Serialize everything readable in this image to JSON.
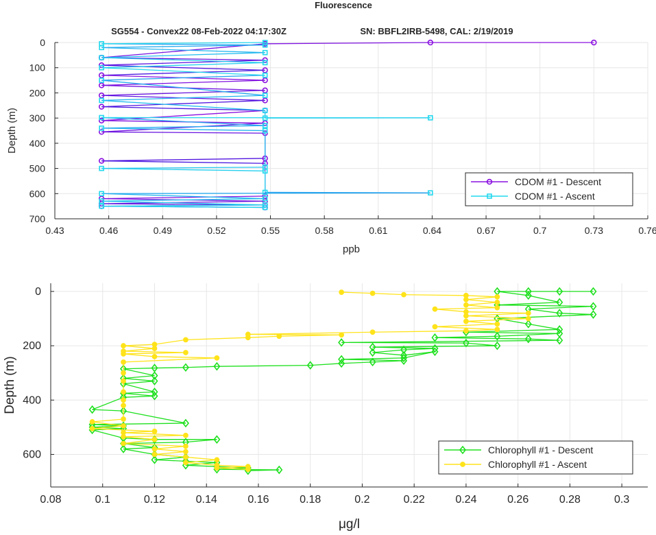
{
  "figure": {
    "title": "Fluorescence",
    "subtitle_left": "SG554 - Convex22 08-Feb-2022 04:17:30Z",
    "subtitle_right": "SN: BBFL2IRB-5498, CAL: 2/19/2019"
  },
  "colors": {
    "cdom_descent": "#8a10e0",
    "cdom_descent_dark": "#1a1ae0",
    "cdom_ascent": "#22d8ee",
    "cdom_ascent_dark": "#2a7ef0",
    "chl_descent": "#1ee01e",
    "chl_ascent": "#ffe31a",
    "grid": "#e6e6e6",
    "axis": "#262626"
  },
  "chart_data": [
    {
      "type": "line",
      "xlabel": "ppb",
      "ylabel": "Depth (m)",
      "xlim": [
        0.43,
        0.76
      ],
      "ylim": [
        0,
        700
      ],
      "y_reversed": true,
      "grid": true,
      "legend_location": "bottom-right",
      "xticks": [
        "0.43",
        "0.46",
        "0.49",
        "0.52",
        "0.55",
        "0.58",
        "0.61",
        "0.64",
        "0.67",
        "0.7",
        "0.73",
        "0.76"
      ],
      "yticks": [
        "0",
        "100",
        "200",
        "300",
        "400",
        "500",
        "600",
        "700"
      ],
      "series": [
        {
          "name": "CDOM #1 - Descent",
          "marker": "circle",
          "points": [
            [
              0.73,
              0
            ],
            [
              0.639,
              0
            ],
            [
              0.547,
              5
            ],
            [
              0.456,
              60
            ],
            [
              0.547,
              70
            ],
            [
              0.456,
              90
            ],
            [
              0.547,
              110
            ],
            [
              0.456,
              130
            ],
            [
              0.547,
              150
            ],
            [
              0.456,
              170
            ],
            [
              0.547,
              190
            ],
            [
              0.456,
              210
            ],
            [
              0.547,
              230
            ],
            [
              0.456,
              255
            ],
            [
              0.547,
              270
            ],
            [
              0.456,
              310
            ],
            [
              0.547,
              320
            ],
            [
              0.456,
              355
            ],
            [
              0.547,
              360
            ],
            [
              0.547,
              460
            ],
            [
              0.456,
              470
            ],
            [
              0.547,
              480
            ],
            [
              0.547,
              610
            ],
            [
              0.456,
              620
            ],
            [
              0.547,
              630
            ],
            [
              0.456,
              640
            ],
            [
              0.547,
              645
            ],
            [
              0.456,
              650
            ],
            [
              0.547,
              655
            ]
          ]
        },
        {
          "name": "CDOM #1 - Ascent",
          "marker": "square",
          "points": [
            [
              0.547,
              655
            ],
            [
              0.456,
              650
            ],
            [
              0.547,
              645
            ],
            [
              0.456,
              630
            ],
            [
              0.547,
              620
            ],
            [
              0.456,
              600
            ],
            [
              0.639,
              597
            ],
            [
              0.547,
              595
            ],
            [
              0.547,
              510
            ],
            [
              0.456,
              500
            ],
            [
              0.547,
              495
            ],
            [
              0.547,
              350
            ],
            [
              0.456,
              340
            ],
            [
              0.547,
              330
            ],
            [
              0.456,
              298
            ],
            [
              0.639,
              299
            ],
            [
              0.547,
              300
            ],
            [
              0.547,
              270
            ],
            [
              0.456,
              230
            ],
            [
              0.547,
              210
            ],
            [
              0.456,
              150
            ],
            [
              0.547,
              130
            ],
            [
              0.456,
              100
            ],
            [
              0.547,
              80
            ],
            [
              0.456,
              60
            ],
            [
              0.547,
              40
            ],
            [
              0.456,
              20
            ],
            [
              0.547,
              10
            ],
            [
              0.456,
              5
            ],
            [
              0.547,
              0
            ]
          ]
        }
      ]
    },
    {
      "type": "line",
      "xlabel": "μg/l",
      "ylabel": "Depth (m)",
      "xlim": [
        0.08,
        0.31
      ],
      "ylim": [
        -30,
        720
      ],
      "y_reversed": true,
      "grid": true,
      "legend_location": "bottom-right",
      "xticks": [
        "0.08",
        "0.1",
        "0.12",
        "0.14",
        "0.16",
        "0.18",
        "0.2",
        "0.22",
        "0.24",
        "0.26",
        "0.28",
        "0.3"
      ],
      "yticks": [
        "0",
        "200",
        "400",
        "600"
      ],
      "series": [
        {
          "name": "Chlorophyll #1 - Descent",
          "marker": "diamond",
          "points": [
            [
              0.289,
              0
            ],
            [
              0.276,
              0
            ],
            [
              0.264,
              0
            ],
            [
              0.252,
              0
            ],
            [
              0.264,
              15
            ],
            [
              0.276,
              40
            ],
            [
              0.252,
              50
            ],
            [
              0.289,
              55
            ],
            [
              0.264,
              65
            ],
            [
              0.276,
              80
            ],
            [
              0.289,
              85
            ],
            [
              0.252,
              100
            ],
            [
              0.264,
              120
            ],
            [
              0.276,
              140
            ],
            [
              0.24,
              150
            ],
            [
              0.276,
              155
            ],
            [
              0.252,
              165
            ],
            [
              0.228,
              170
            ],
            [
              0.264,
              175
            ],
            [
              0.276,
              180
            ],
            [
              0.192,
              188
            ],
            [
              0.24,
              190
            ],
            [
              0.252,
              200
            ],
            [
              0.204,
              205
            ],
            [
              0.228,
              210
            ],
            [
              0.216,
              215
            ],
            [
              0.204,
              225
            ],
            [
              0.216,
              235
            ],
            [
              0.228,
              222
            ],
            [
              0.216,
              245
            ],
            [
              0.192,
              250
            ],
            [
              0.216,
              255
            ],
            [
              0.204,
              260
            ],
            [
              0.192,
              265
            ],
            [
              0.18,
              272
            ],
            [
              0.144,
              276
            ],
            [
              0.132,
              280
            ],
            [
              0.12,
              282
            ],
            [
              0.108,
              285
            ],
            [
              0.12,
              310
            ],
            [
              0.108,
              320
            ],
            [
              0.12,
              330
            ],
            [
              0.108,
              340
            ],
            [
              0.12,
              370
            ],
            [
              0.108,
              375
            ],
            [
              0.12,
              385
            ],
            [
              0.108,
              390
            ],
            [
              0.096,
              435
            ],
            [
              0.108,
              440
            ],
            [
              0.132,
              485
            ],
            [
              0.096,
              490
            ],
            [
              0.108,
              495
            ],
            [
              0.096,
              500
            ],
            [
              0.108,
              505
            ],
            [
              0.096,
              510
            ],
            [
              0.108,
              540
            ],
            [
              0.12,
              545
            ],
            [
              0.144,
              545
            ],
            [
              0.132,
              555
            ],
            [
              0.108,
              560
            ],
            [
              0.12,
              575
            ],
            [
              0.108,
              580
            ],
            [
              0.12,
              600
            ],
            [
              0.132,
              610
            ],
            [
              0.12,
              620
            ],
            [
              0.132,
              625
            ],
            [
              0.144,
              630
            ],
            [
              0.132,
              640
            ],
            [
              0.144,
              645
            ],
            [
              0.156,
              650
            ],
            [
              0.144,
              655
            ],
            [
              0.168,
              657
            ],
            [
              0.156,
              660
            ]
          ]
        },
        {
          "name": "Chlorophyll #1 - Ascent",
          "marker": "dot",
          "points": [
            [
              0.156,
              655
            ],
            [
              0.144,
              650
            ],
            [
              0.156,
              645
            ],
            [
              0.144,
              640
            ],
            [
              0.132,
              630
            ],
            [
              0.144,
              620
            ],
            [
              0.132,
              610
            ],
            [
              0.12,
              600
            ],
            [
              0.132,
              590
            ],
            [
              0.12,
              580
            ],
            [
              0.132,
              570
            ],
            [
              0.108,
              560
            ],
            [
              0.12,
              545
            ],
            [
              0.108,
              535
            ],
            [
              0.132,
              530
            ],
            [
              0.108,
              520
            ],
            [
              0.12,
              515
            ],
            [
              0.096,
              505
            ],
            [
              0.108,
              495
            ],
            [
              0.096,
              480
            ],
            [
              0.108,
              470
            ],
            [
              0.108,
              420
            ],
            [
              0.108,
              400
            ],
            [
              0.108,
              370
            ],
            [
              0.108,
              330
            ],
            [
              0.108,
              300
            ],
            [
              0.108,
              260
            ],
            [
              0.144,
              245
            ],
            [
              0.12,
              240
            ],
            [
              0.108,
              230
            ],
            [
              0.132,
              225
            ],
            [
              0.108,
              220
            ],
            [
              0.12,
              210
            ],
            [
              0.108,
              200
            ],
            [
              0.12,
              195
            ],
            [
              0.132,
              178
            ],
            [
              0.156,
              170
            ],
            [
              0.168,
              165
            ],
            [
              0.192,
              160
            ],
            [
              0.156,
              158
            ],
            [
              0.204,
              150
            ],
            [
              0.24,
              145
            ],
            [
              0.252,
              140
            ],
            [
              0.228,
              130
            ],
            [
              0.252,
              120
            ],
            [
              0.24,
              110
            ],
            [
              0.264,
              100
            ],
            [
              0.24,
              90
            ],
            [
              0.264,
              80
            ],
            [
              0.24,
              75
            ],
            [
              0.228,
              65
            ],
            [
              0.252,
              60
            ],
            [
              0.24,
              50
            ],
            [
              0.252,
              40
            ],
            [
              0.24,
              30
            ],
            [
              0.252,
              20
            ],
            [
              0.24,
              15
            ],
            [
              0.216,
              12
            ],
            [
              0.204,
              7
            ],
            [
              0.192,
              3
            ]
          ]
        }
      ]
    }
  ]
}
